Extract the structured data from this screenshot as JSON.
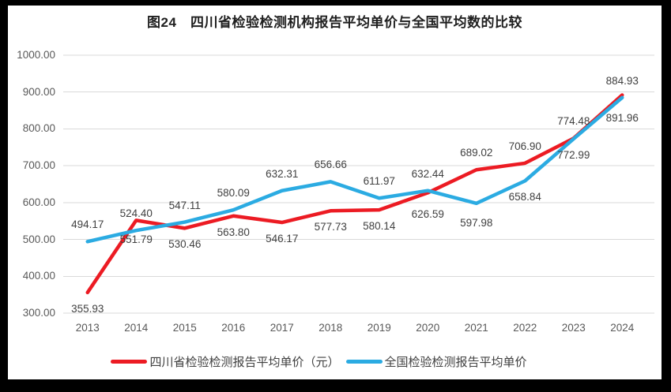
{
  "chart_data": {
    "type": "line",
    "title": "图24　四川省检验检测机构报告平均单价与全国平均数的比较",
    "categories": [
      "2013",
      "2014",
      "2015",
      "2016",
      "2017",
      "2018",
      "2019",
      "2020",
      "2021",
      "2022",
      "2023",
      "2024"
    ],
    "series": [
      {
        "name": "四川省检验检测报告平均单价（元）",
        "color": "#ec1b23",
        "values": [
          355.93,
          551.79,
          530.46,
          563.8,
          546.17,
          577.73,
          580.14,
          626.59,
          689.02,
          706.9,
          774.48,
          891.96
        ],
        "label_side": [
          "below",
          "below",
          "below",
          "below",
          "below",
          "below",
          "below",
          "below",
          "above",
          "above",
          "above",
          "below"
        ],
        "label_dy": [
          0,
          4,
          0,
          0,
          0,
          0,
          0,
          7,
          0,
          0,
          0,
          9
        ]
      },
      {
        "name": "全国检验检测报告平均单价",
        "color": "#2babe2",
        "values": [
          494.17,
          524.4,
          547.11,
          580.09,
          632.31,
          656.66,
          611.97,
          632.44,
          597.98,
          658.84,
          772.99,
          884.93
        ],
        "label_side": [
          "above",
          "above",
          "above",
          "above",
          "above",
          "above",
          "above",
          "above",
          "below",
          "below",
          "below",
          "above"
        ],
        "label_dy": [
          0,
          0,
          0,
          0,
          0,
          0,
          0,
          0,
          4,
          0,
          0,
          0
        ]
      }
    ],
    "xlabel": "",
    "ylabel": "",
    "ylim": [
      300,
      1000
    ],
    "yticks": [
      "1000.00",
      "900.00",
      "800.00",
      "700.00",
      "600.00",
      "500.00",
      "400.00",
      "300.00"
    ],
    "grid": "horizontal",
    "legend_position": "bottom",
    "colors": {
      "grid_line": "#d9d9d9",
      "axis_text": "#595959",
      "data_label_text": "#404040",
      "title_text": "#1f1f1f",
      "background": "#ffffff",
      "frame_border": "#000000"
    }
  }
}
